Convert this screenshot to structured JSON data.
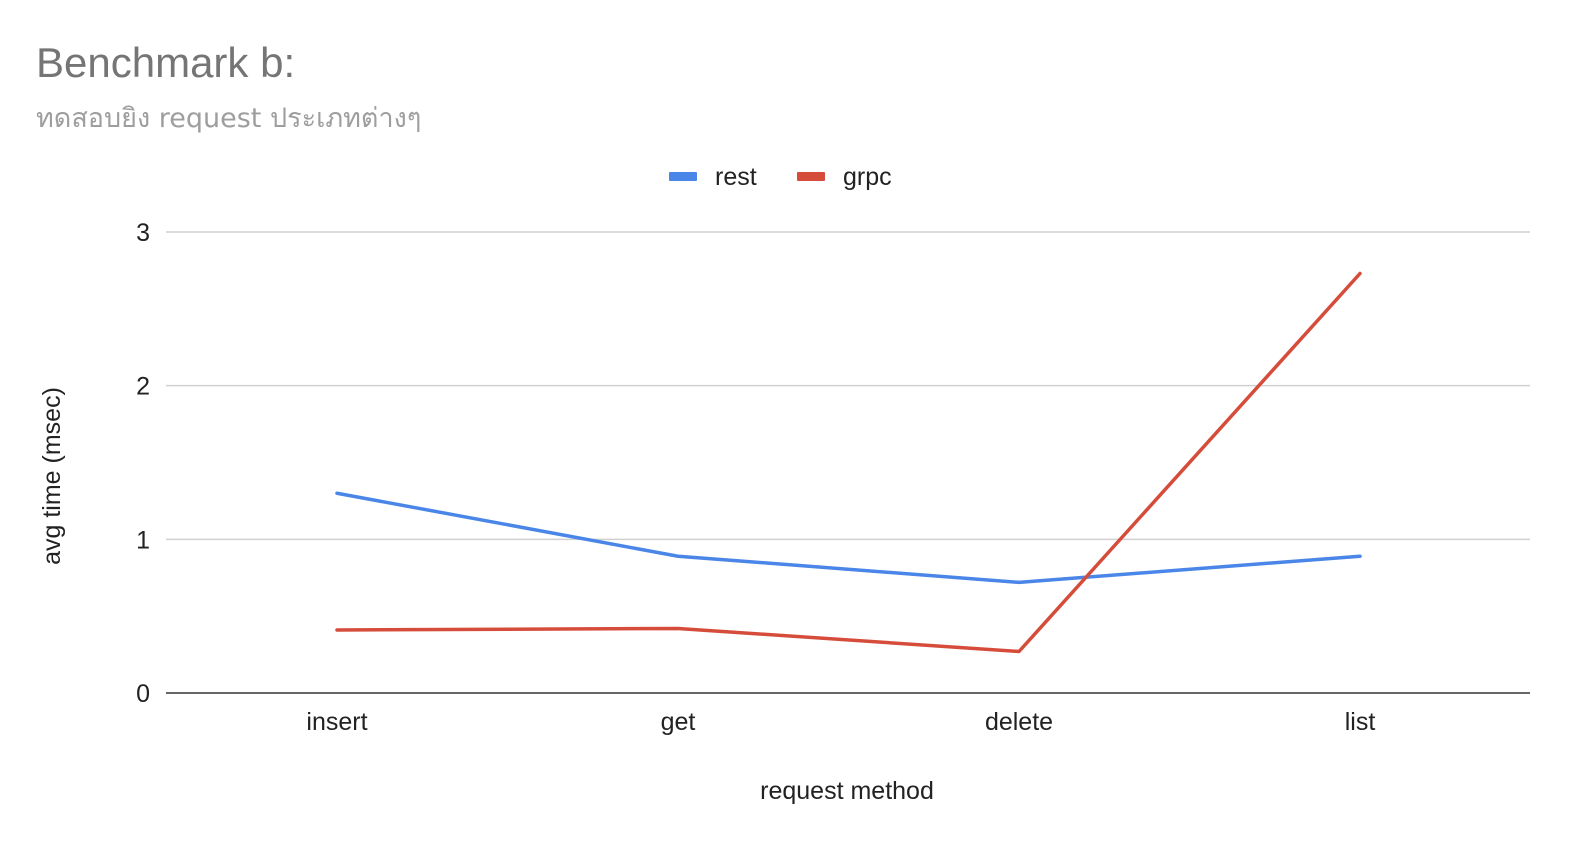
{
  "chart_data": {
    "type": "line",
    "title": "Benchmark b:",
    "subtitle": "ทดสอบยิง request ประเภทต่างๆ",
    "xlabel": "request method",
    "ylabel": "avg time (msec)",
    "categories": [
      "insert",
      "get",
      "delete",
      "list"
    ],
    "ylim": [
      0,
      3
    ],
    "yticks": [
      0,
      1,
      2,
      3
    ],
    "grid": true,
    "legend_position": "top",
    "series": [
      {
        "name": "rest",
        "color": "#4a86e8",
        "values": [
          1.3,
          0.89,
          0.72,
          0.89
        ]
      },
      {
        "name": "grpc",
        "color": "#d64c3b",
        "values": [
          0.41,
          0.42,
          0.27,
          2.73
        ]
      }
    ]
  }
}
